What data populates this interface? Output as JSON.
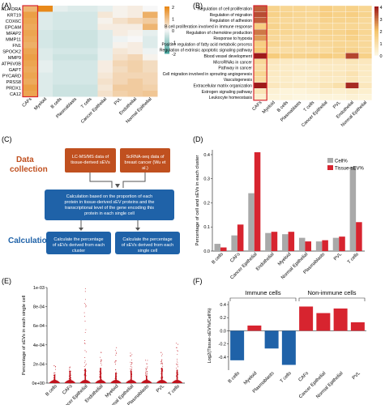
{
  "panels": {
    "A": {
      "label": "(A)",
      "rows": [
        "HLA-DRA",
        "KRT19",
        "COX6C",
        "EPCAM",
        "MFAP2",
        "MMP11",
        "FN1",
        "SPOCK2",
        "MMP9",
        "ATP6V0B",
        "GAPT",
        "PYCARD",
        "PRSS8",
        "PRDX1",
        "CA12"
      ],
      "cols": [
        "CAFs",
        "Myeloid",
        "B cells",
        "Plasmablasts",
        "T cells",
        "Cancer Epithelial",
        "PVL",
        "Endothelial",
        "Normal Epithelial"
      ],
      "values": [
        [
          1.2,
          2.6,
          -0.2,
          -0.3,
          -0.3,
          -0.2,
          0.1,
          0.2,
          0.0
        ],
        [
          1.6,
          -0.3,
          -0.4,
          -0.4,
          -0.4,
          0.3,
          0.1,
          0.2,
          1.3
        ],
        [
          1.5,
          -0.3,
          -0.4,
          -0.4,
          -0.4,
          0.1,
          0.4,
          0.6,
          0.8
        ],
        [
          1.4,
          -0.3,
          -0.4,
          -0.4,
          -0.4,
          0.2,
          0.2,
          0.2,
          1.2
        ],
        [
          1.5,
          -0.4,
          -0.5,
          -0.5,
          -0.5,
          -0.3,
          0.2,
          0.1,
          -0.2
        ],
        [
          1.4,
          -0.4,
          -0.5,
          -0.5,
          -0.5,
          -0.3,
          -0.1,
          0.0,
          -0.3
        ],
        [
          1.3,
          -0.4,
          -0.5,
          -0.5,
          -0.5,
          -0.3,
          0.1,
          0.2,
          -0.3
        ],
        [
          1.5,
          -0.3,
          -0.4,
          -0.4,
          -0.4,
          -0.2,
          0.3,
          0.2,
          -0.1
        ],
        [
          1.6,
          -0.3,
          -0.5,
          -0.5,
          -0.5,
          -0.2,
          0.4,
          0.6,
          0.1
        ],
        [
          1.5,
          -0.2,
          -0.4,
          -0.4,
          -0.4,
          0.2,
          0.6,
          0.7,
          0.5
        ],
        [
          1.4,
          -0.2,
          -0.4,
          -0.4,
          -0.4,
          0.2,
          0.5,
          0.7,
          0.5
        ],
        [
          1.5,
          -0.3,
          -0.4,
          -0.4,
          -0.4,
          0.3,
          0.6,
          0.6,
          0.6
        ],
        [
          1.4,
          -0.3,
          -0.4,
          -0.4,
          -0.4,
          0.4,
          0.6,
          0.8,
          0.6
        ],
        [
          1.6,
          -0.3,
          -0.5,
          -0.5,
          -0.5,
          0.3,
          0.8,
          0.8,
          0.7
        ],
        [
          1.5,
          -0.3,
          -0.5,
          -0.5,
          -0.5,
          0.4,
          0.7,
          0.8,
          0.9
        ]
      ],
      "scale_ticks": [
        "2",
        "1",
        "0",
        "-1",
        "-2"
      ],
      "scale_range": [
        -2,
        2
      ],
      "colors": {
        "low": "#4aa8a0",
        "mid": "#f7f7f7",
        "high": "#e8891a"
      }
    },
    "B": {
      "label": "(B)",
      "rows": [
        "Regulation of cell proliferation",
        "Regulation of migration",
        "Regulation of adhesion",
        "B cell proliferation involved in immune response",
        "Regulation of chemokine production",
        "Response to hypoxia",
        "Positive regulation of fatty acid metabolic process",
        "Regulation of extrinsic apoptotic signaling pathway",
        "Blood vessel development",
        "MicroRNAs in cancer",
        "Pathway in cancer",
        "Cell migration involved in sprouting angiogenesis",
        "Vasculogenesis",
        "Extracellular matrix organization",
        "Estrogen signaling pathway",
        "Leukocyte homeostasis"
      ],
      "cols": [
        "CAFs",
        "Myeloid",
        "B cells",
        "Plasmablasts",
        "T cells",
        "Cancer Epithelial",
        "PVL",
        "Endothelial",
        "Normal Epithelial"
      ],
      "values": [
        [
          3.2,
          1.4,
          1.3,
          1.3,
          1.2,
          1.6,
          1.4,
          1.5,
          1.3
        ],
        [
          3.4,
          1.5,
          1.4,
          1.3,
          1.3,
          1.6,
          1.5,
          1.6,
          1.4
        ],
        [
          3.2,
          1.3,
          1.2,
          1.2,
          1.1,
          1.4,
          1.4,
          1.4,
          1.2
        ],
        [
          1.6,
          1.4,
          1.3,
          1.2,
          1.2,
          1.3,
          1.3,
          1.3,
          1.2
        ],
        [
          2.9,
          1.3,
          1.3,
          1.2,
          1.2,
          1.4,
          1.4,
          1.6,
          1.3
        ],
        [
          2.5,
          1.2,
          1.1,
          1.1,
          1.1,
          1.3,
          1.3,
          1.5,
          1.2
        ],
        [
          1.6,
          1.3,
          1.2,
          1.1,
          1.2,
          1.2,
          1.3,
          1.3,
          1.2
        ],
        [
          1.8,
          1.0,
          1.0,
          1.1,
          1.0,
          1.1,
          1.4,
          1.4,
          1.2
        ],
        [
          4.2,
          1.7,
          1.5,
          1.4,
          1.5,
          1.6,
          1.5,
          3.5,
          1.5
        ],
        [
          1.2,
          0.6,
          0.5,
          0.4,
          0.5,
          0.6,
          0.6,
          0.7,
          0.6
        ],
        [
          1.0,
          0.5,
          0.4,
          0.4,
          0.4,
          0.5,
          0.5,
          0.6,
          0.5
        ],
        [
          1.3,
          0.5,
          0.5,
          0.4,
          0.4,
          0.6,
          0.6,
          0.8,
          0.5
        ],
        [
          1.1,
          0.4,
          0.4,
          0.3,
          0.4,
          0.5,
          0.5,
          0.7,
          0.4
        ],
        [
          4.5,
          0.6,
          0.5,
          0.5,
          0.5,
          0.7,
          0.9,
          3.8,
          0.6
        ],
        [
          0.7,
          0.2,
          0.1,
          0.1,
          0.2,
          0.4,
          0.3,
          0.4,
          0.3
        ],
        [
          0.3,
          0.1,
          0.1,
          0.0,
          0.0,
          0.1,
          0.1,
          0.2,
          0.1
        ]
      ],
      "scale_ticks": [
        "4",
        "3",
        "2",
        "1",
        "0"
      ],
      "scale_range": [
        0,
        4
      ],
      "colors": {
        "low": "#fdf6e0",
        "mid": "#f5c46a",
        "high": "#9e1a1a"
      }
    },
    "C": {
      "label": "(C)",
      "data_collection_label": "Data collection",
      "calculation_label": "Calculation",
      "box_lcms": "LC-MS/MS data of tissue-derived sEVs",
      "box_scrna": "ScRNA-seq data of breast cancer (Wu et al.)",
      "box_calc": "Calculation based on the proportion of each protein in tissue-derived sEV proteins and the transcriptional level of the gene encoding this protein in each single cell",
      "box_cluster": "Calculate the percentage of sEVs derived from each cluster",
      "box_single": "Calculate the percentage of sEVs derived from each single cell",
      "colors": {
        "orange": "#c0501f",
        "blue": "#1f62a8",
        "title_blue": "#1f62a8",
        "title_orange": "#c0501f"
      }
    },
    "D": {
      "label": "(D)"
    },
    "E": {
      "label": "(E)"
    },
    "F": {
      "label": "(F)",
      "immune_label": "Immune cells",
      "non_immune_label": "Non-immune cells"
    }
  },
  "chart_data": [
    {
      "panel": "D",
      "type": "bar",
      "categories": [
        "B cells",
        "CAFs",
        "Cancer Epithelial",
        "Endothelial",
        "Myeloid",
        "Normal Epithelial",
        "Plasmablasts",
        "PVL",
        "T cells"
      ],
      "series": [
        {
          "name": "Cell%",
          "values": [
            0.03,
            0.065,
            0.24,
            0.075,
            0.07,
            0.055,
            0.04,
            0.055,
            0.35
          ],
          "color": "#a9a9a9"
        },
        {
          "name": "Tissue-sEV%",
          "values": [
            0.015,
            0.11,
            0.41,
            0.08,
            0.08,
            0.04,
            0.045,
            0.06,
            0.12
          ],
          "color": "#d7242f"
        }
      ],
      "title": "",
      "xlabel": "",
      "ylabel": "Percentage of cell and sEVs in each cluster",
      "ylim": [
        0,
        0.42
      ],
      "yticks": [
        "0.0",
        "0.1",
        "0.2",
        "0.3",
        "0.4"
      ],
      "legend": "top-right"
    },
    {
      "panel": "E",
      "type": "scatter",
      "categories": [
        "B cells",
        "CAFs",
        "Cancer Epithelial",
        "Endothelial",
        "Myeloid",
        "Normal Epithelial",
        "Plasmablasts",
        "PVL",
        "T cells"
      ],
      "max_values": [
        0.0002,
        0.00021,
        0.00105,
        0.00035,
        0.0004,
        0.00032,
        0.00025,
        0.00034,
        0.00045
      ],
      "dense_top": [
        9e-05,
        0.00013,
        0.00015,
        0.00016,
        0.00011,
        0.00013,
        8e-05,
        0.00016,
        0.00014
      ],
      "color": "#c0121c",
      "ylabel": "Percentage of sEVs in each single cell",
      "ylim": [
        0,
        0.001
      ],
      "yticks": [
        "0e+00",
        "2e-04",
        "4e-04",
        "6e-04",
        "8e-04",
        "1e-03"
      ]
    },
    {
      "panel": "F",
      "type": "bar",
      "categories": [
        "B cells",
        "Myeloid",
        "Plasmablasts",
        "T cells",
        "CAFs",
        "Cancer Epithelial",
        "Normal Epithelial",
        "PVL"
      ],
      "values": [
        -0.45,
        0.08,
        -0.27,
        -0.52,
        0.37,
        0.27,
        0.34,
        0.13
      ],
      "colors": [
        "#1f62a8",
        "#d7242f",
        "#1f62a8",
        "#1f62a8",
        "#d7242f",
        "#d7242f",
        "#d7242f",
        "#d7242f"
      ],
      "ylabel": "Log2(Tissue-sEV%/Cell%)",
      "ylim": [
        -0.6,
        0.45
      ],
      "yticks": [
        "-0.4",
        "-0.2",
        "0.0",
        "0.2",
        "0.4"
      ]
    }
  ]
}
